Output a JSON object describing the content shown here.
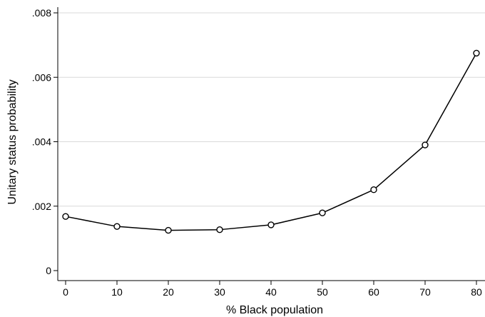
{
  "chart_data": {
    "type": "line",
    "title": "",
    "xlabel": "% Black population",
    "ylabel": "Unitary status probability",
    "x": [
      0,
      10,
      20,
      30,
      40,
      50,
      60,
      70,
      80
    ],
    "series": [
      {
        "values": [
          0.00168,
          0.00137,
          0.00125,
          0.00127,
          0.00142,
          0.00179,
          0.00251,
          0.0039,
          0.00675
        ]
      }
    ],
    "xlim": [
      0,
      80
    ],
    "ylim": [
      0,
      0.008
    ],
    "x_ticks": [
      0,
      10,
      20,
      30,
      40,
      50,
      60,
      70,
      80
    ],
    "x_tick_labels": [
      "0",
      "10",
      "20",
      "30",
      "40",
      "50",
      "60",
      "70",
      "80"
    ],
    "y_ticks": [
      0,
      0.002,
      0.004,
      0.006,
      0.008
    ],
    "y_tick_labels": [
      "0",
      ".002",
      ".004",
      ".006",
      ".008"
    ],
    "grid": "horizontal",
    "marker": "hollow-circle",
    "colors": {
      "line": "#000000",
      "grid": "#d9d9d9",
      "axis": "#000000"
    }
  }
}
